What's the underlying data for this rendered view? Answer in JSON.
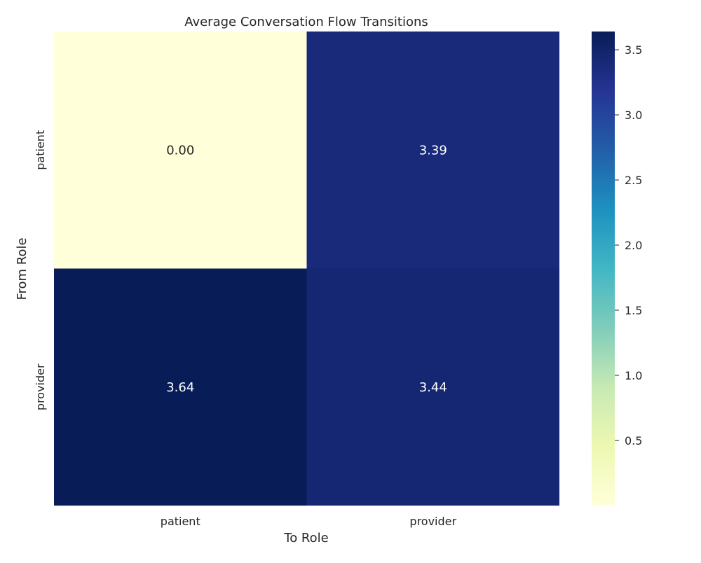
{
  "chart_data": {
    "type": "heatmap",
    "title": "Average Conversation Flow Transitions",
    "xlabel": "To Role",
    "ylabel": "From Role",
    "x_categories": [
      "patient",
      "provider"
    ],
    "y_categories": [
      "patient",
      "provider"
    ],
    "values": [
      [
        0.0,
        3.39
      ],
      [
        3.64,
        3.44
      ]
    ],
    "cell_labels": [
      [
        "0.00",
        "3.39"
      ],
      [
        "3.64",
        "3.44"
      ]
    ],
    "value_range": [
      0,
      3.64
    ],
    "colormap": "YlGnBu",
    "colorbar": {
      "ticks": [
        0.5,
        1.0,
        1.5,
        2.0,
        2.5,
        3.0,
        3.5
      ],
      "tick_labels": [
        "0.5",
        "1.0",
        "1.5",
        "2.0",
        "2.5",
        "3.0",
        "3.5"
      ]
    },
    "colors": {
      "text_dark": "#262626",
      "text_light": "#ffffff"
    }
  }
}
